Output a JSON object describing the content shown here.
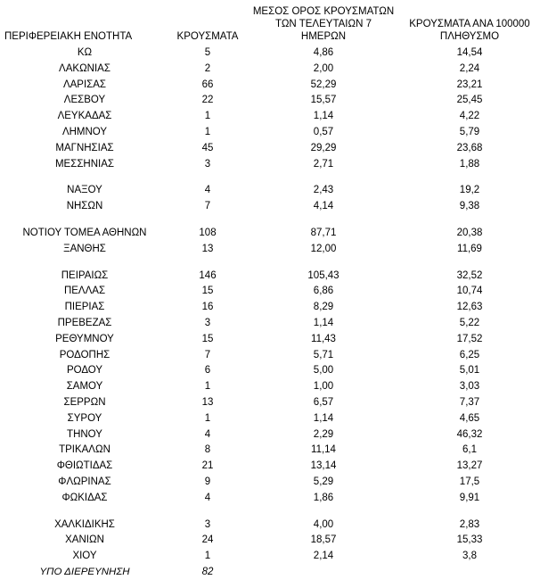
{
  "page": {
    "background_color": "#ffffff",
    "text_color": "#000000"
  },
  "table": {
    "headers": [
      "ΠΕΡΙΦΕΡΕΙΑΚΗ ΕΝΟΤΗΤΑ",
      "ΚΡΟΥΣΜΑΤΑ",
      "ΜΕΣΟΣ ΟΡΟΣ ΚΡΟΥΣΜΑΤΩΝ\nΤΩΝ ΤΕΛΕΥΤΑΙΩΝ 7\nΗΜΕΡΩΝ",
      "ΚΡΟΥΣΜΑΤΑ ΑΝΑ 100000\nΠΛΗΘΥΣΜΟ"
    ]
  },
  "chart_data": {
    "type": "table",
    "columns": [
      "ΠΕΡΙΦΕΡΕΙΑΚΗ ΕΝΟΤΗΤΑ",
      "ΚΡΟΥΣΜΑΤΑ",
      "ΜΕΣΟΣ ΟΡΟΣ ΚΡΟΥΣΜΑΤΩΝ ΤΩΝ ΤΕΛΕΥΤΑΙΩΝ 7 ΗΜΕΡΩΝ",
      "ΚΡΟΥΣΜΑΤΑ ΑΝΑ 100000 ΠΛΗΘΥΣΜΟ"
    ],
    "decimal_separator": ",",
    "rows": [
      {
        "region": "ΚΩ",
        "cases": "5",
        "avg7": "4,86",
        "per100k": "14,54"
      },
      {
        "region": "ΛΑΚΩΝΙΑΣ",
        "cases": "2",
        "avg7": "2,00",
        "per100k": "2,24"
      },
      {
        "region": "ΛΑΡΙΣΑΣ",
        "cases": "66",
        "avg7": "52,29",
        "per100k": "23,21"
      },
      {
        "region": "ΛΕΣΒΟΥ",
        "cases": "22",
        "avg7": "15,57",
        "per100k": "25,45"
      },
      {
        "region": "ΛΕΥΚΑΔΑΣ",
        "cases": "1",
        "avg7": "1,14",
        "per100k": "4,22"
      },
      {
        "region": "ΛΗΜΝΟΥ",
        "cases": "1",
        "avg7": "0,57",
        "per100k": "5,79"
      },
      {
        "region": "ΜΑΓΝΗΣΙΑΣ",
        "cases": "45",
        "avg7": "29,29",
        "per100k": "23,68"
      },
      {
        "region": "ΜΕΣΣΗΝΙΑΣ",
        "cases": "3",
        "avg7": "2,71",
        "per100k": "1,88"
      },
      {
        "region": "ΝΑΞΟΥ",
        "cases": "4",
        "avg7": "2,43",
        "per100k": "19,2",
        "gap_before": true
      },
      {
        "region": "ΝΗΣΩΝ",
        "cases": "7",
        "avg7": "4,14",
        "per100k": "9,38"
      },
      {
        "region": "ΝΟΤΙΟΥ ΤΟΜΕΑ ΑΘΗΝΩΝ",
        "cases": "108",
        "avg7": "87,71",
        "per100k": "20,38",
        "gap_before": true
      },
      {
        "region": "ΞΑΝΘΗΣ",
        "cases": "13",
        "avg7": "12,00",
        "per100k": "11,69"
      },
      {
        "region": "ΠΕΙΡΑΙΩΣ",
        "cases": "146",
        "avg7": "105,43",
        "per100k": "32,52",
        "gap_before": true
      },
      {
        "region": "ΠΕΛΛΑΣ",
        "cases": "15",
        "avg7": "6,86",
        "per100k": "10,74"
      },
      {
        "region": "ΠΙΕΡΙΑΣ",
        "cases": "16",
        "avg7": "8,29",
        "per100k": "12,63"
      },
      {
        "region": "ΠΡΕΒΕΖΑΣ",
        "cases": "3",
        "avg7": "1,14",
        "per100k": "5,22"
      },
      {
        "region": "ΡΕΘΥΜΝΟΥ",
        "cases": "15",
        "avg7": "11,43",
        "per100k": "17,52"
      },
      {
        "region": "ΡΟΔΟΠΗΣ",
        "cases": "7",
        "avg7": "5,71",
        "per100k": "6,25"
      },
      {
        "region": "ΡΟΔΟΥ",
        "cases": "6",
        "avg7": "5,00",
        "per100k": "5,01"
      },
      {
        "region": "ΣΑΜΟΥ",
        "cases": "1",
        "avg7": "1,00",
        "per100k": "3,03"
      },
      {
        "region": "ΣΕΡΡΩΝ",
        "cases": "13",
        "avg7": "6,57",
        "per100k": "7,37"
      },
      {
        "region": "ΣΥΡΟΥ",
        "cases": "1",
        "avg7": "1,14",
        "per100k": "4,65"
      },
      {
        "region": "ΤΗΝΟΥ",
        "cases": "4",
        "avg7": "2,29",
        "per100k": "46,32"
      },
      {
        "region": "ΤΡΙΚΑΛΩΝ",
        "cases": "8",
        "avg7": "11,14",
        "per100k": "6,1"
      },
      {
        "region": "ΦΘΙΩΤΙΔΑΣ",
        "cases": "21",
        "avg7": "13,14",
        "per100k": "13,27"
      },
      {
        "region": "ΦΛΩΡΙΝΑΣ",
        "cases": "9",
        "avg7": "5,29",
        "per100k": "17,5"
      },
      {
        "region": "ΦΩΚΙΔΑΣ",
        "cases": "4",
        "avg7": "1,86",
        "per100k": "9,91"
      },
      {
        "region": "ΧΑΛΚΙΔΙΚΗΣ",
        "cases": "3",
        "avg7": "4,00",
        "per100k": "2,83",
        "gap_before": true
      },
      {
        "region": "ΧΑΝΙΩΝ",
        "cases": "24",
        "avg7": "18,57",
        "per100k": "15,33"
      },
      {
        "region": "ΧΙΟΥ",
        "cases": "1",
        "avg7": "2,14",
        "per100k": "3,8"
      },
      {
        "region": "ΥΠΟ ΔΙΕΡΕΥΝΗΣΗ",
        "cases": "82",
        "avg7": "",
        "per100k": "",
        "italic": true
      }
    ]
  }
}
